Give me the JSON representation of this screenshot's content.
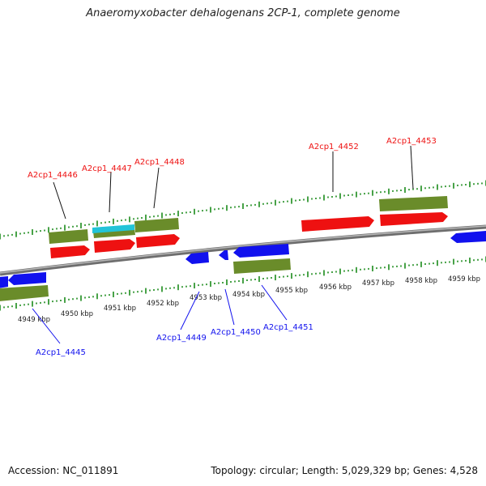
{
  "title": "Anaeromyxobacter dehalogenans 2CP-1, complete genome",
  "footer": {
    "accession": "Accession: NC_011891",
    "summary": "Topology: circular; Length: 5,029,329 bp; Genes: 4,528"
  },
  "scale_labels": [
    "4949 kbp",
    "4950 kbp",
    "4951 kbp",
    "4952 kbp",
    "4953 kbp",
    "4954 kbp",
    "4955 kbp",
    "4956 kbp",
    "4957 kbp",
    "4958 kbp",
    "4959 kbp"
  ],
  "forward_gene_labels": [
    "A2cp1_4446",
    "A2cp1_4447",
    "A2cp1_4448",
    "A2cp1_4452",
    "A2cp1_4453"
  ],
  "reverse_gene_labels": [
    "A2cp1_4445",
    "A2cp1_4449",
    "A2cp1_4450",
    "A2cp1_4451"
  ],
  "colors": {
    "forward_gene": "#ee1111",
    "reverse_gene": "#1111ee",
    "cds": "#6a8c2a",
    "rna": "#22c4d8",
    "tick": "#1a8a1a",
    "backbone": "#8a8a8a"
  }
}
